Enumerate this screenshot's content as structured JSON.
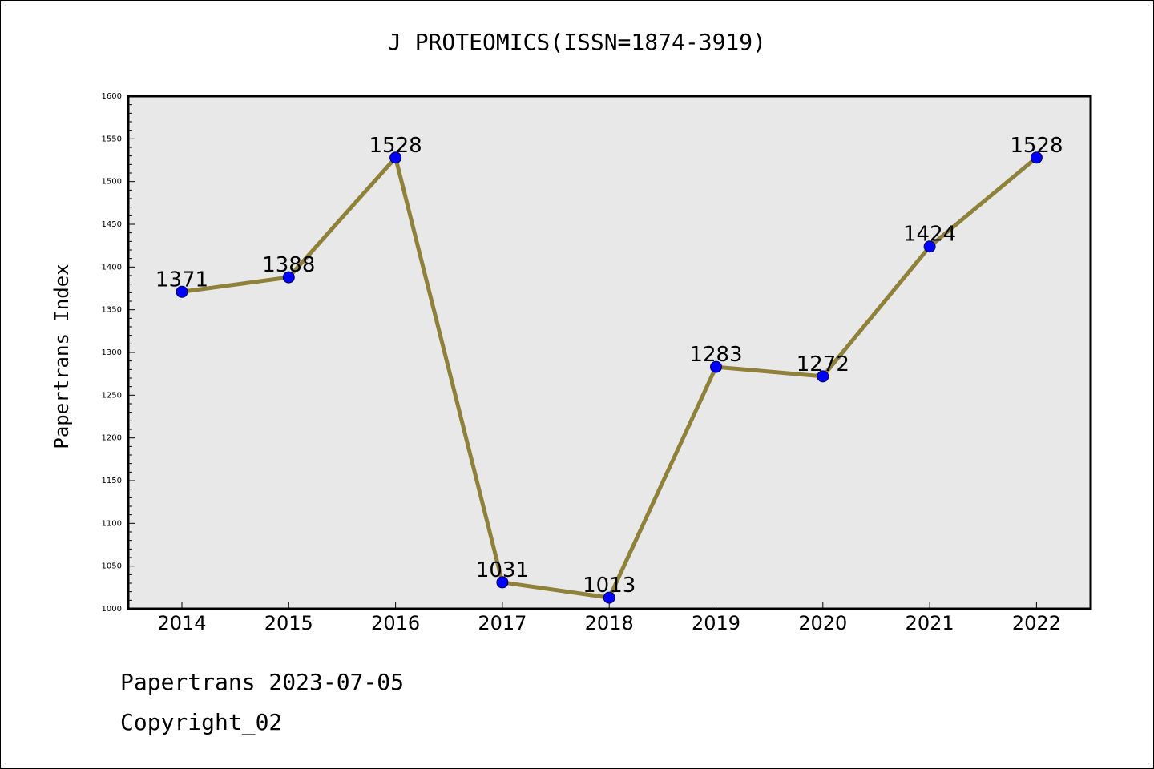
{
  "footer": {
    "line1": "Papertrans 2023-07-05",
    "line2": "Copyright_02"
  },
  "colors": {
    "plot_background": "#e8e8e8",
    "line": "#8f803a",
    "marker": "#0000ff",
    "axes": "#000000"
  },
  "chart_data": {
    "type": "line",
    "title": "J PROTEOMICS(ISSN=1874-3919)",
    "xlabel": "",
    "ylabel": "Papertrans Index",
    "x": [
      "2014",
      "2015",
      "2016",
      "2017",
      "2018",
      "2019",
      "2020",
      "2021",
      "2022"
    ],
    "series": [
      {
        "values": [
          1371,
          1388,
          1528,
          1031,
          1013,
          1283,
          1272,
          1424,
          1528
        ]
      }
    ],
    "data_labels": [
      "1371",
      "1388",
      "1528",
      "1031",
      "1013",
      "1283",
      "1272",
      "1424",
      "1528"
    ],
    "ylim": [
      1000,
      1600
    ],
    "yticks": [
      "1000",
      "1050",
      "1100",
      "1150",
      "1200",
      "1250",
      "1300",
      "1350",
      "1400",
      "1450",
      "1500",
      "1550",
      "1600"
    ],
    "grid": false,
    "legend": "none"
  }
}
